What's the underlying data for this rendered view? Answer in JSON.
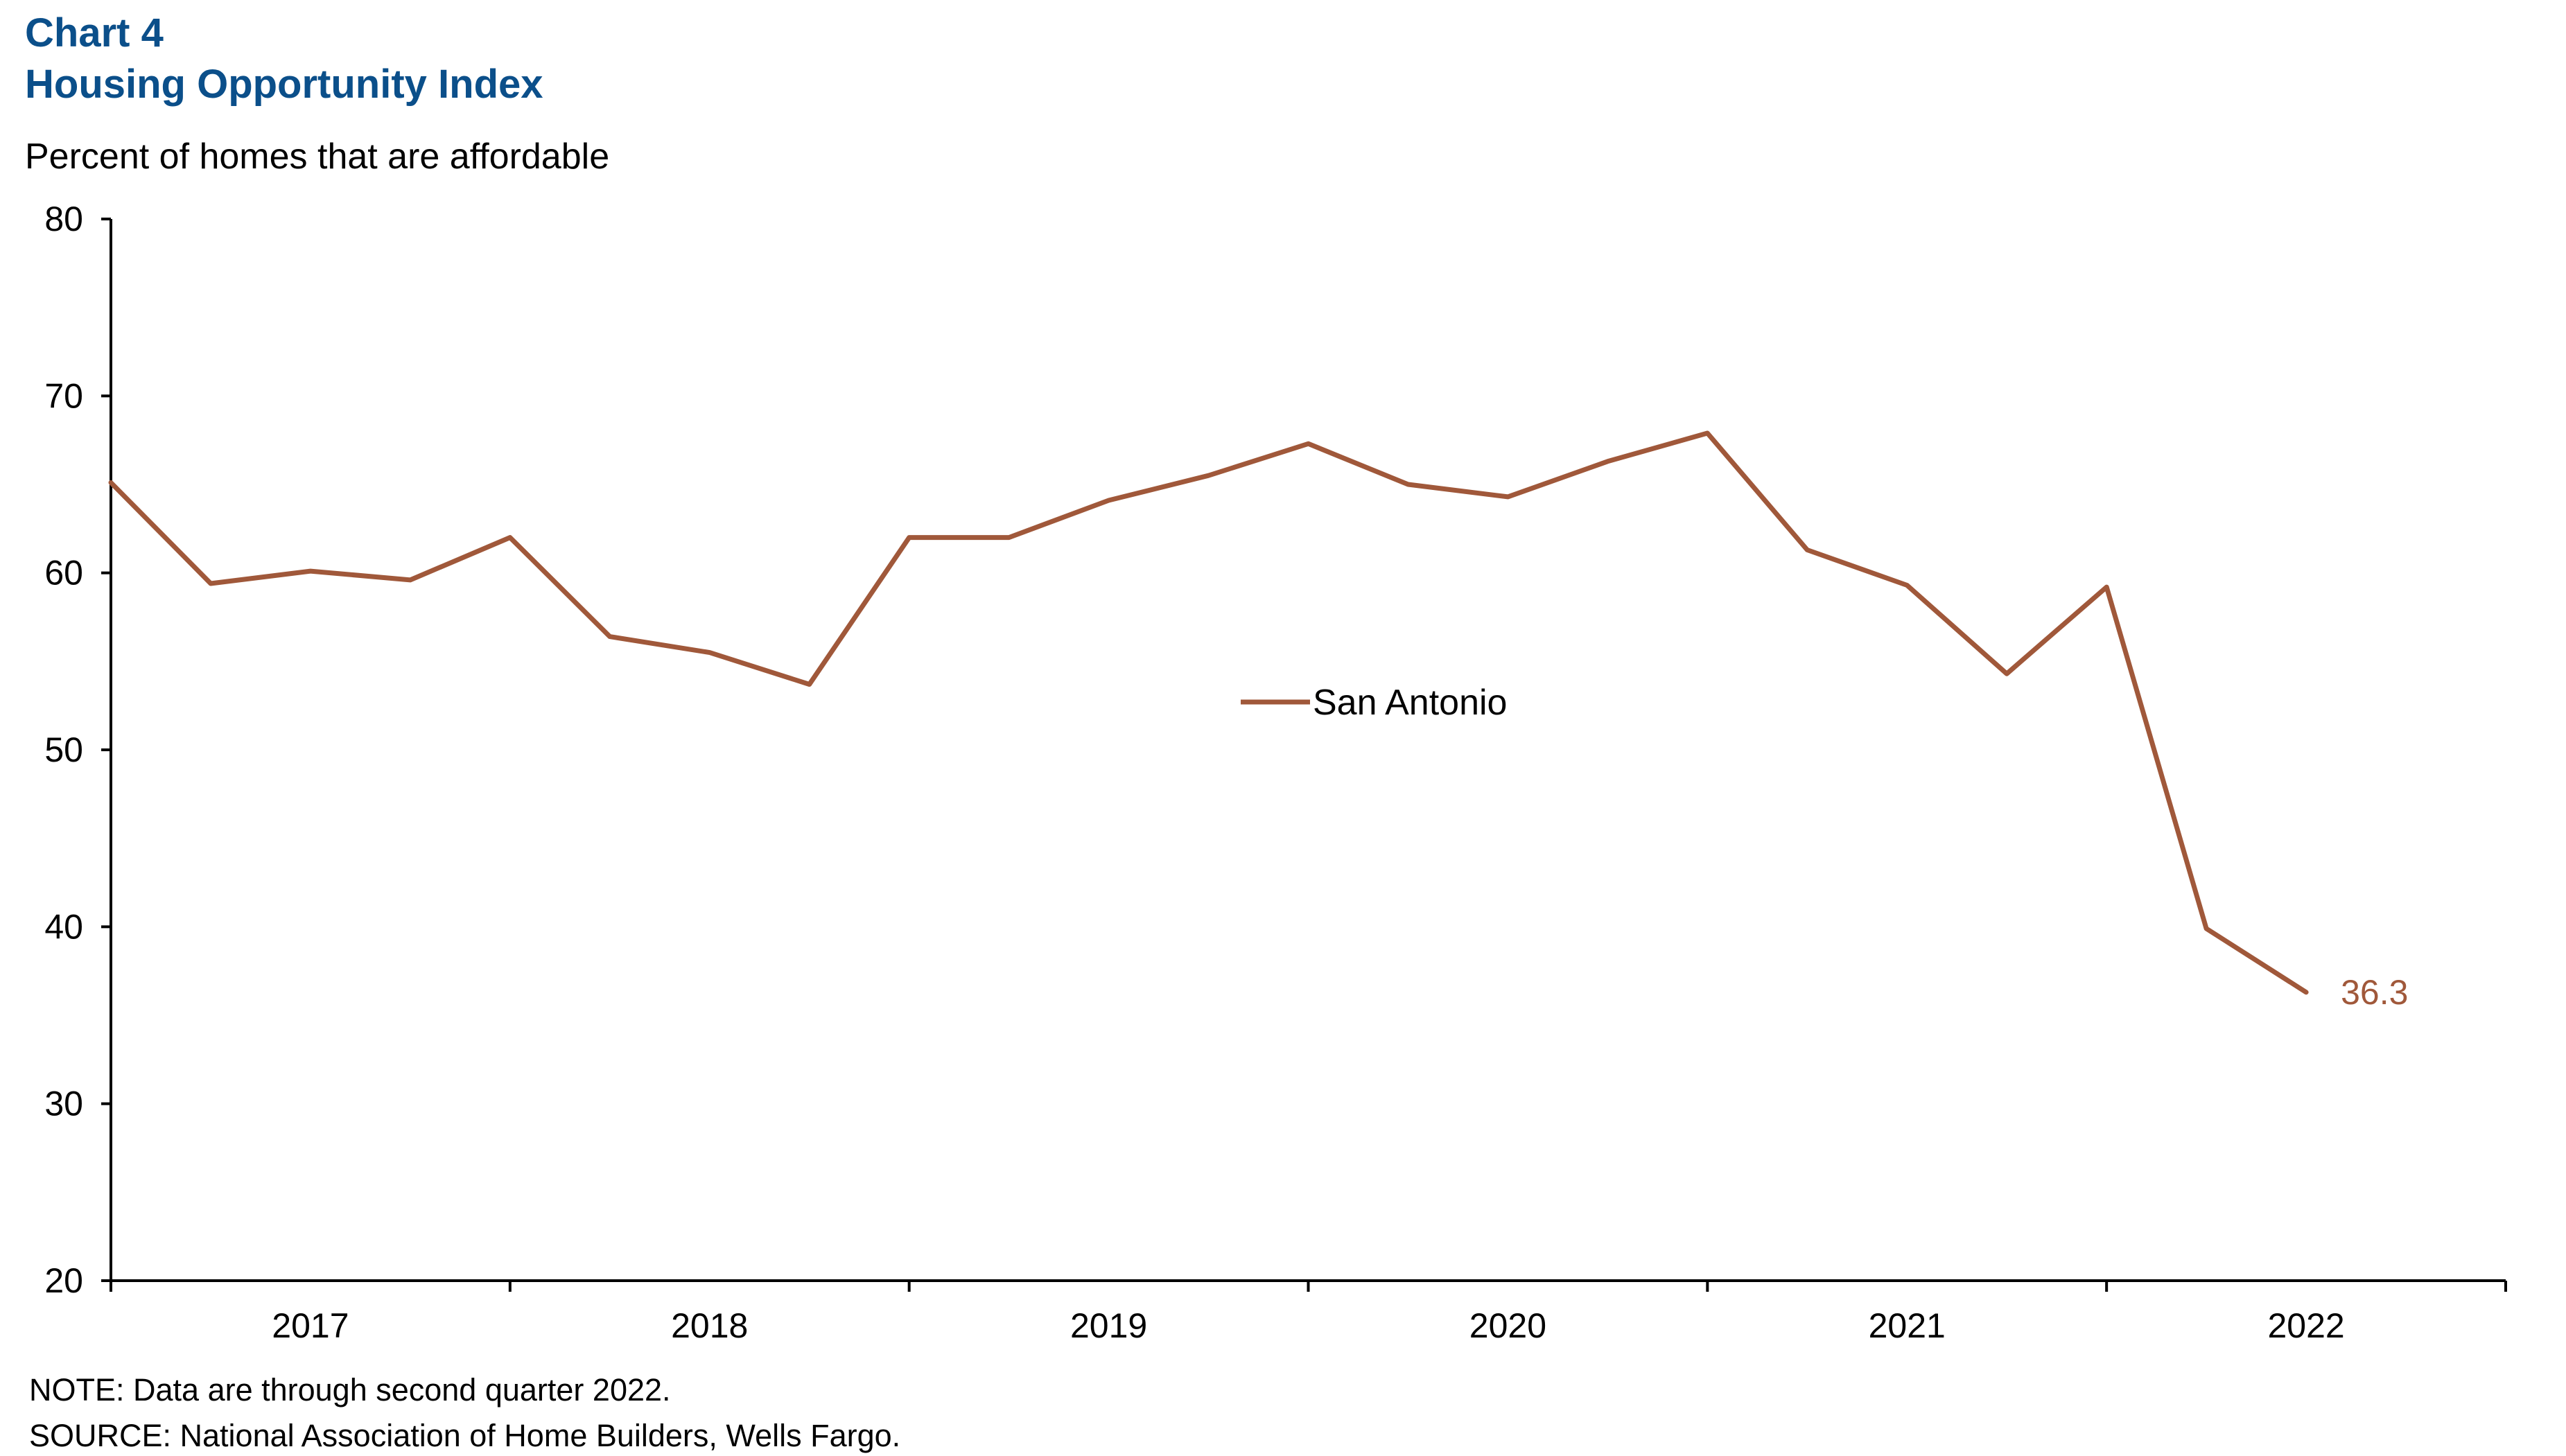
{
  "header": {
    "chart_number": "Chart 4",
    "title": "Housing Opportunity Index",
    "y_axis_label": "Percent of homes that are affordable"
  },
  "footer": {
    "note": "NOTE: Data are through second quarter 2022.",
    "source": "SOURCE: National Association of Home Builders, Wells Fargo."
  },
  "colors": {
    "title": "#0b4f8a",
    "series": "#a0583a",
    "axis": "#000000"
  },
  "chart_data": {
    "type": "line",
    "title": "Housing Opportunity Index",
    "ylabel": "Percent of homes that are affordable",
    "xlabel": "",
    "ylim": [
      20,
      80
    ],
    "yticks": [
      20,
      30,
      40,
      50,
      60,
      70,
      80
    ],
    "x_year_labels": [
      "2017",
      "2018",
      "2019",
      "2020",
      "2021",
      "2022"
    ],
    "x_range": [
      "2016Q4",
      "2022Q4"
    ],
    "grid": false,
    "legend_position": "center",
    "x": [
      "2016Q4",
      "2017Q1",
      "2017Q2",
      "2017Q3",
      "2017Q4",
      "2018Q1",
      "2018Q2",
      "2018Q3",
      "2018Q4",
      "2019Q1",
      "2019Q2",
      "2019Q3",
      "2019Q4",
      "2020Q1",
      "2020Q2",
      "2020Q3",
      "2020Q4",
      "2021Q1",
      "2021Q2",
      "2021Q3",
      "2021Q4",
      "2022Q1",
      "2022Q2"
    ],
    "series": [
      {
        "name": "San Antonio",
        "values": [
          65.1,
          59.4,
          60.1,
          59.6,
          62.0,
          56.4,
          55.5,
          53.7,
          62.0,
          62.0,
          64.1,
          65.5,
          67.3,
          65.0,
          64.3,
          66.3,
          67.9,
          61.3,
          59.3,
          54.3,
          59.2,
          39.9,
          36.3
        ]
      }
    ],
    "annotations": [
      {
        "text": "36.3",
        "x": "2022Q2",
        "y": 36.3
      }
    ]
  }
}
